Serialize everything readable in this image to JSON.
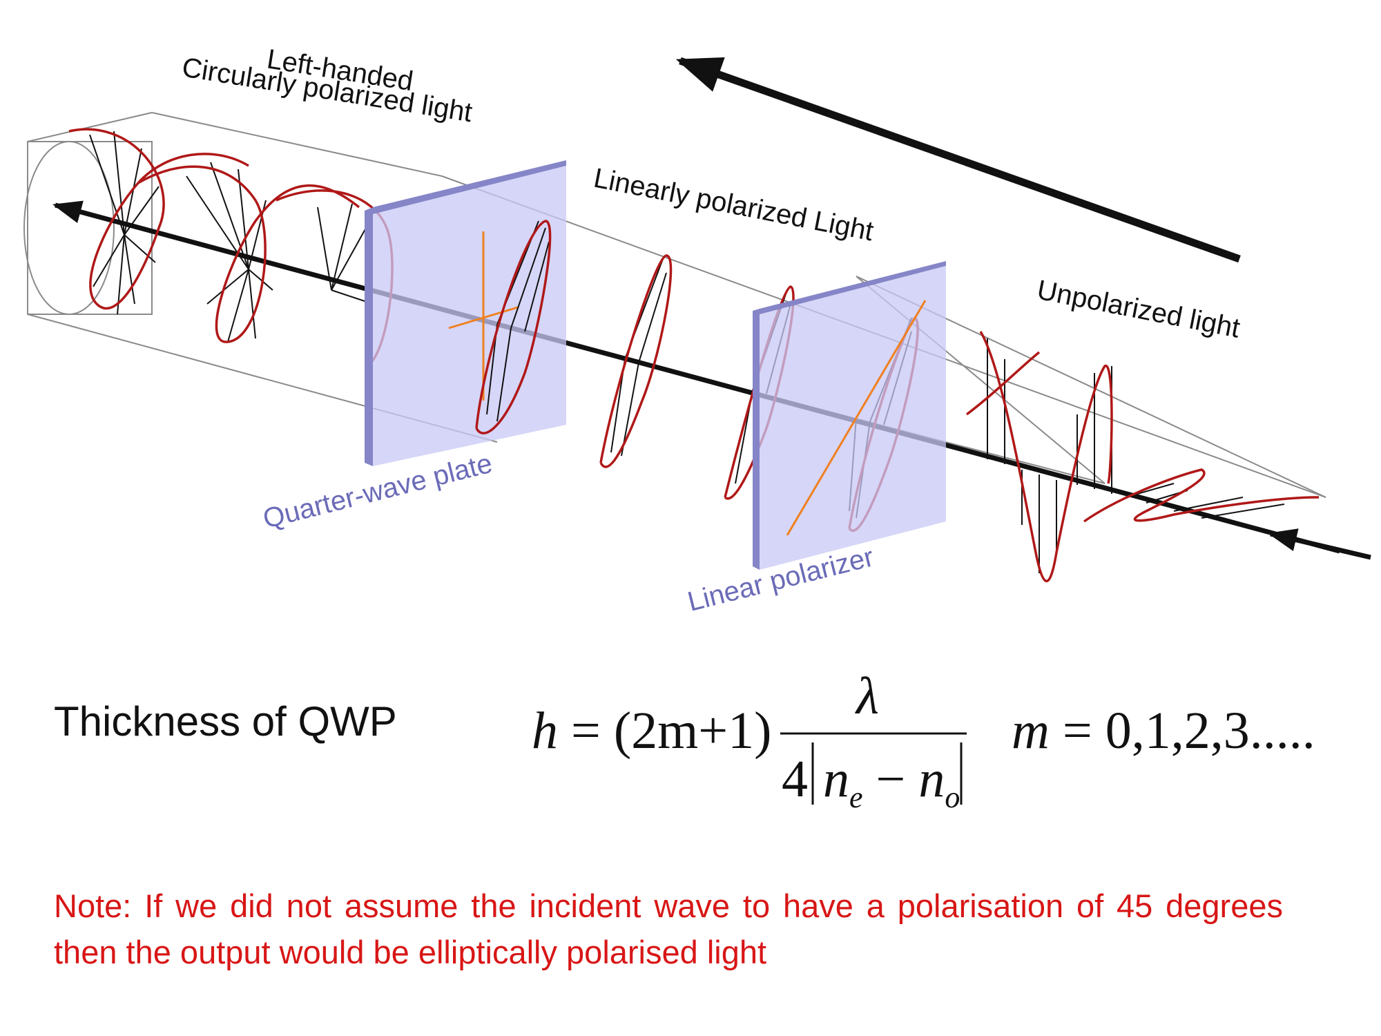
{
  "labels": {
    "left_handed_line1": "Left-handed",
    "left_handed_line2": "Circularly polarized light",
    "linearly": "Linearly polarized Light",
    "unpolarized": "Unpolarized light",
    "quarter_wave": "Quarter-wave plate",
    "linear_polarizer": "Linear polarizer"
  },
  "thickness_label": "Thickness of QWP",
  "formula": {
    "lhs": "h",
    "eq": "=",
    "factor": "(2m+1)",
    "numerator": "λ",
    "denominator_coef": "4",
    "ne": "n",
    "ne_sub": "e",
    "minus": "−",
    "no": "n",
    "no_sub": "o",
    "m_label": "m",
    "m_values": "0,1,2,3....."
  },
  "note": "Note: If we did not assume the incident wave to have a polarisation of 45 degrees then the output would be elliptically polarised light",
  "colors": {
    "wave": "#b01818",
    "plate": "#c8c8f5",
    "plate_edge": "#8585c8",
    "label_blue": "#6b6bb8",
    "note": "#d81616",
    "axis_orange": "#f08020"
  }
}
